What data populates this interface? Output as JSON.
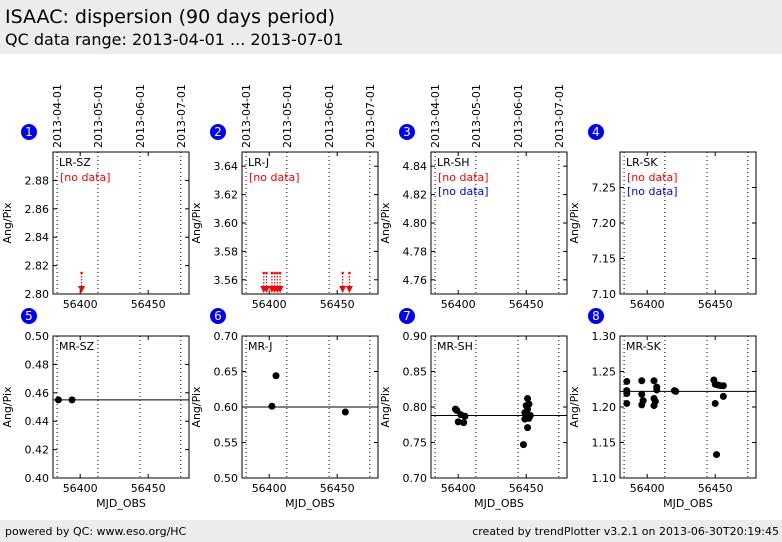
{
  "header": {
    "title": "ISAAC: dispersion (90 days period)",
    "subtitle": "QC data range: 2013-04-01 ... 2013-07-01"
  },
  "footer": {
    "left": "powered by QC: www.eso.org/HC",
    "right": "created by trendPlotter v3.2.1 on 2013-06-30T20:19:45"
  },
  "chart_data": [
    {
      "type": "scatter",
      "panel": "1",
      "label": "LR-SZ",
      "ylabel": "Ang/Pix",
      "xlabel": "",
      "xlim": [
        56380,
        56480
      ],
      "ylim": [
        2.8,
        2.9
      ],
      "yticks": [
        "2.80",
        "2.82",
        "2.84",
        "2.86",
        "2.88"
      ],
      "xticks": [
        56400,
        56450
      ],
      "date_ticks": [
        "2013-04-01",
        "2013-05-01",
        "2013-06-01",
        "2013-07-01"
      ],
      "date_tick_mjd": [
        56383,
        56413,
        56444,
        56474
      ],
      "reference_line": null,
      "points": [],
      "out_of_range": [
        {
          "x": 56401,
          "dir": "down",
          "color": "#ff0000"
        }
      ],
      "no_data": [
        {
          "text": "[no data]",
          "color": "#ff0000"
        }
      ]
    },
    {
      "type": "scatter",
      "panel": "2",
      "label": "LR-J",
      "ylabel": "Ang/Pix",
      "xlabel": "",
      "xlim": [
        56380,
        56480
      ],
      "ylim": [
        3.55,
        3.65
      ],
      "yticks": [
        "3.56",
        "3.58",
        "3.60",
        "3.62",
        "3.64"
      ],
      "xticks": [
        56400,
        56450
      ],
      "date_ticks": [
        "2013-04-01",
        "2013-05-01",
        "2013-06-01",
        "2013-07-01"
      ],
      "date_tick_mjd": [
        56383,
        56413,
        56444,
        56474
      ],
      "reference_line": null,
      "points": [],
      "out_of_range": [
        {
          "x": 56396,
          "dir": "down",
          "color": "#ff0000"
        },
        {
          "x": 56398,
          "dir": "down",
          "color": "#ff0000"
        },
        {
          "x": 56402,
          "dir": "down",
          "color": "#ff0000"
        },
        {
          "x": 56404,
          "dir": "down",
          "color": "#ff0000"
        },
        {
          "x": 56406,
          "dir": "down",
          "color": "#ff0000"
        },
        {
          "x": 56408,
          "dir": "down",
          "color": "#ff0000"
        },
        {
          "x": 56454,
          "dir": "down",
          "color": "#ff0000"
        },
        {
          "x": 56459,
          "dir": "down",
          "color": "#ff0000"
        }
      ],
      "no_data": [
        {
          "text": "[no data]",
          "color": "#ff0000"
        }
      ]
    },
    {
      "type": "scatter",
      "panel": "3",
      "label": "LR-SH",
      "ylabel": "Ang/Pix",
      "xlabel": "",
      "xlim": [
        56380,
        56480
      ],
      "ylim": [
        4.75,
        4.85
      ],
      "yticks": [
        "4.76",
        "4.78",
        "4.80",
        "4.82",
        "4.84"
      ],
      "xticks": [
        56400,
        56450
      ],
      "date_ticks": [
        "2013-04-01",
        "2013-05-01",
        "2013-06-01",
        "2013-07-01"
      ],
      "date_tick_mjd": [
        56383,
        56413,
        56444,
        56474
      ],
      "reference_line": null,
      "points": [],
      "out_of_range": [],
      "no_data": [
        {
          "text": "[no data]",
          "color": "#ff0000"
        },
        {
          "text": "[no data]",
          "color": "#0000ff"
        }
      ]
    },
    {
      "type": "scatter",
      "panel": "4",
      "label": "LR-SK",
      "ylabel": "Ang/Pix",
      "xlabel": "",
      "xlim": [
        56380,
        56480
      ],
      "ylim": [
        7.1,
        7.3
      ],
      "yticks": [
        "7.10",
        "7.15",
        "7.20",
        "7.25"
      ],
      "xticks": [
        56400,
        56450
      ],
      "date_ticks": [],
      "date_tick_mjd": [
        56383,
        56413,
        56444,
        56474
      ],
      "reference_line": null,
      "points": [],
      "out_of_range": [],
      "no_data": [
        {
          "text": "[no data]",
          "color": "#ff0000"
        },
        {
          "text": "[no data]",
          "color": "#0000ff"
        }
      ]
    },
    {
      "type": "scatter",
      "panel": "5",
      "label": "MR-SZ",
      "ylabel": "Ang/Pix",
      "xlabel": "MJD_OBS",
      "xlim": [
        56380,
        56480
      ],
      "ylim": [
        0.4,
        0.5
      ],
      "yticks": [
        "0.40",
        "0.42",
        "0.44",
        "0.46",
        "0.48",
        "0.50"
      ],
      "xticks": [
        56400,
        56450
      ],
      "date_ticks": [],
      "date_tick_mjd": [
        56383,
        56413,
        56444,
        56474
      ],
      "reference_line": 0.455,
      "points": [
        {
          "x": 56384,
          "y": 0.455
        },
        {
          "x": 56394,
          "y": 0.455
        }
      ],
      "out_of_range": [],
      "no_data": []
    },
    {
      "type": "scatter",
      "panel": "6",
      "label": "MR-J",
      "ylabel": "Ang/Pix",
      "xlabel": "MJD_OBS",
      "xlim": [
        56380,
        56480
      ],
      "ylim": [
        0.5,
        0.7
      ],
      "yticks": [
        "0.50",
        "0.55",
        "0.60",
        "0.65",
        "0.70"
      ],
      "xticks": [
        56400,
        56450
      ],
      "date_ticks": [],
      "date_tick_mjd": [
        56383,
        56413,
        56444,
        56474
      ],
      "reference_line": 0.6,
      "points": [
        {
          "x": 56402,
          "y": 0.601
        },
        {
          "x": 56405,
          "y": 0.644
        },
        {
          "x": 56456,
          "y": 0.593
        }
      ],
      "out_of_range": [],
      "no_data": []
    },
    {
      "type": "scatter",
      "panel": "7",
      "label": "MR-SH",
      "ylabel": "Ang/Pix",
      "xlabel": "MJD_OBS",
      "xlim": [
        56380,
        56480
      ],
      "ylim": [
        0.7,
        0.9
      ],
      "yticks": [
        "0.70",
        "0.75",
        "0.80",
        "0.85",
        "0.90"
      ],
      "xticks": [
        56400,
        56450
      ],
      "date_ticks": [],
      "date_tick_mjd": [
        56383,
        56413,
        56444,
        56474
      ],
      "reference_line": 0.788,
      "points": [
        {
          "x": 56398,
          "y": 0.797
        },
        {
          "x": 56399,
          "y": 0.795
        },
        {
          "x": 56400,
          "y": 0.779
        },
        {
          "x": 56402,
          "y": 0.789
        },
        {
          "x": 56404,
          "y": 0.778
        },
        {
          "x": 56405,
          "y": 0.787
        },
        {
          "x": 56448,
          "y": 0.747
        },
        {
          "x": 56449,
          "y": 0.783
        },
        {
          "x": 56449,
          "y": 0.792
        },
        {
          "x": 56450,
          "y": 0.802
        },
        {
          "x": 56450,
          "y": 0.786
        },
        {
          "x": 56451,
          "y": 0.797
        },
        {
          "x": 56451,
          "y": 0.812
        },
        {
          "x": 56451,
          "y": 0.771
        },
        {
          "x": 56452,
          "y": 0.784
        },
        {
          "x": 56452,
          "y": 0.804
        },
        {
          "x": 56453,
          "y": 0.788
        }
      ],
      "out_of_range": [],
      "no_data": []
    },
    {
      "type": "scatter",
      "panel": "8",
      "label": "MR-SK",
      "ylabel": "Ang/Pix",
      "xlabel": "MJD_OBS",
      "xlim": [
        56380,
        56480
      ],
      "ylim": [
        1.1,
        1.3
      ],
      "yticks": [
        "1.10",
        "1.15",
        "1.20",
        "1.25",
        "1.30"
      ],
      "xticks": [
        56400,
        56450
      ],
      "date_ticks": [],
      "date_tick_mjd": [
        56383,
        56413,
        56444,
        56474
      ],
      "reference_line": 1.222,
      "points": [
        {
          "x": 56385,
          "y": 1.236
        },
        {
          "x": 56385,
          "y": 1.223
        },
        {
          "x": 56385,
          "y": 1.219
        },
        {
          "x": 56385,
          "y": 1.205
        },
        {
          "x": 56396,
          "y": 1.237
        },
        {
          "x": 56396,
          "y": 1.218
        },
        {
          "x": 56396,
          "y": 1.203
        },
        {
          "x": 56397,
          "y": 1.209
        },
        {
          "x": 56405,
          "y": 1.237
        },
        {
          "x": 56405,
          "y": 1.212
        },
        {
          "x": 56405,
          "y": 1.202
        },
        {
          "x": 56406,
          "y": 1.208
        },
        {
          "x": 56407,
          "y": 1.228
        },
        {
          "x": 56407,
          "y": 1.224
        },
        {
          "x": 56420,
          "y": 1.223
        },
        {
          "x": 56421,
          "y": 1.222
        },
        {
          "x": 56449,
          "y": 1.238
        },
        {
          "x": 56450,
          "y": 1.232
        },
        {
          "x": 56450,
          "y": 1.205
        },
        {
          "x": 56451,
          "y": 1.133
        },
        {
          "x": 56452,
          "y": 1.231
        },
        {
          "x": 56454,
          "y": 1.23
        },
        {
          "x": 56456,
          "y": 1.23
        },
        {
          "x": 56456,
          "y": 1.215
        }
      ],
      "out_of_range": [],
      "no_data": []
    }
  ]
}
